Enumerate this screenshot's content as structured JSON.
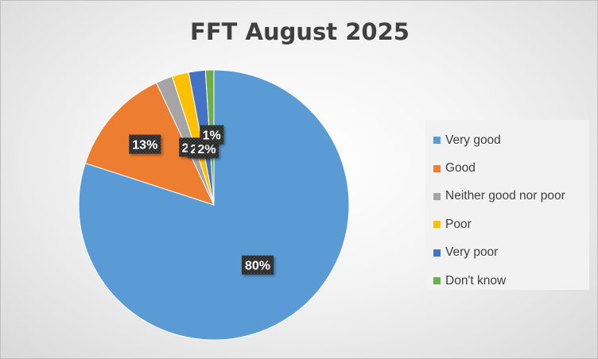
{
  "chart_data": {
    "type": "pie",
    "title": "FFT August 2025",
    "categories": [
      "Very good",
      "Good",
      "Neither good nor poor",
      "Poor",
      "Very poor",
      "Don't know"
    ],
    "values": [
      80,
      13,
      2,
      2,
      2,
      1
    ],
    "data_labels": [
      "80%",
      "13%",
      "2%",
      "2%",
      "2%",
      "1%"
    ],
    "colors": [
      "#5b9bd5",
      "#ed7d31",
      "#a5a5a5",
      "#ffc000",
      "#4472c4",
      "#70ad47"
    ],
    "legend_position": "right"
  }
}
